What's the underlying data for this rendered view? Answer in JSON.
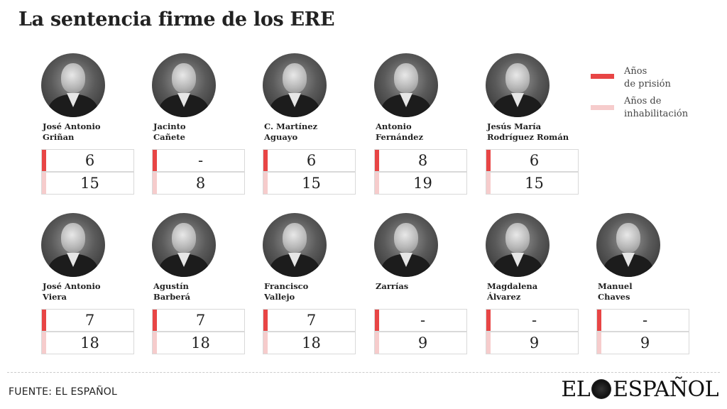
{
  "title": "La sentencia firme de los ERE",
  "legend": {
    "prison_label_1": "Años",
    "prison_label_2": "de prisión",
    "inhab_label_1": "Años de",
    "inhab_label_2": "inhabilitación",
    "prison_color": "#e84545",
    "inhab_color": "#f6cccc"
  },
  "source": "FUENTE: EL ESPAÑOL",
  "logo": {
    "left": "EL",
    "right": "ESPAÑOL"
  },
  "chart_data": {
    "type": "table",
    "title": "La sentencia firme de los ERE",
    "columns": [
      "Años de prisión",
      "Años de inhabilitación"
    ],
    "people": [
      {
        "name_1": "José Antonio",
        "name_2": "Griñan",
        "prison": "6",
        "inhab": "15"
      },
      {
        "name_1": "Jacinto",
        "name_2": "Cañete",
        "prison": "-",
        "inhab": "8"
      },
      {
        "name_1": "C. Martínez",
        "name_2": "Aguayo",
        "prison": "6",
        "inhab": "15"
      },
      {
        "name_1": "Antonio",
        "name_2": "Fernández",
        "prison": "8",
        "inhab": "19"
      },
      {
        "name_1": "Jesús María",
        "name_2": "Rodríguez Román",
        "prison": "6",
        "inhab": "15"
      },
      {
        "name_1": "José Antonio",
        "name_2": "Viera",
        "prison": "7",
        "inhab": "18"
      },
      {
        "name_1": "Agustín",
        "name_2": "Barberá",
        "prison": "7",
        "inhab": "18"
      },
      {
        "name_1": "Francisco",
        "name_2": "Vallejo",
        "prison": "7",
        "inhab": "18"
      },
      {
        "name_1": "Zarrías",
        "name_2": "",
        "prison": "-",
        "inhab": "9"
      },
      {
        "name_1": "Magdalena",
        "name_2": "Álvarez",
        "prison": "-",
        "inhab": "9"
      },
      {
        "name_1": "Manuel",
        "name_2": "Chaves",
        "prison": "-",
        "inhab": "9"
      }
    ]
  }
}
